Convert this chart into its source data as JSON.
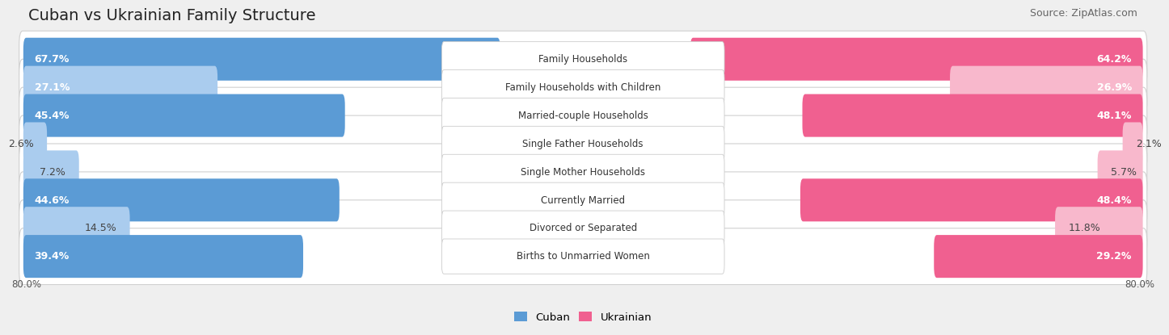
{
  "title": "Cuban vs Ukrainian Family Structure",
  "source": "Source: ZipAtlas.com",
  "categories": [
    "Family Households",
    "Family Households with Children",
    "Married-couple Households",
    "Single Father Households",
    "Single Mother Households",
    "Currently Married",
    "Divorced or Separated",
    "Births to Unmarried Women"
  ],
  "cuban_values": [
    67.7,
    27.1,
    45.4,
    2.6,
    7.2,
    44.6,
    14.5,
    39.4
  ],
  "ukrainian_values": [
    64.2,
    26.9,
    48.1,
    2.1,
    5.7,
    48.4,
    11.8,
    29.2
  ],
  "cuban_color_dark": "#5b9bd5",
  "ukrainian_color_dark": "#f06090",
  "cuban_color_light": "#aaccee",
  "ukrainian_color_light": "#f8b8cc",
  "axis_max": 80.0,
  "background_color": "#efefef",
  "row_colors": [
    "dark",
    "light",
    "dark",
    "light",
    "light",
    "dark",
    "light",
    "dark"
  ],
  "title_fontsize": 14,
  "source_fontsize": 9,
  "bar_label_fontsize": 9,
  "category_fontsize": 8.5
}
